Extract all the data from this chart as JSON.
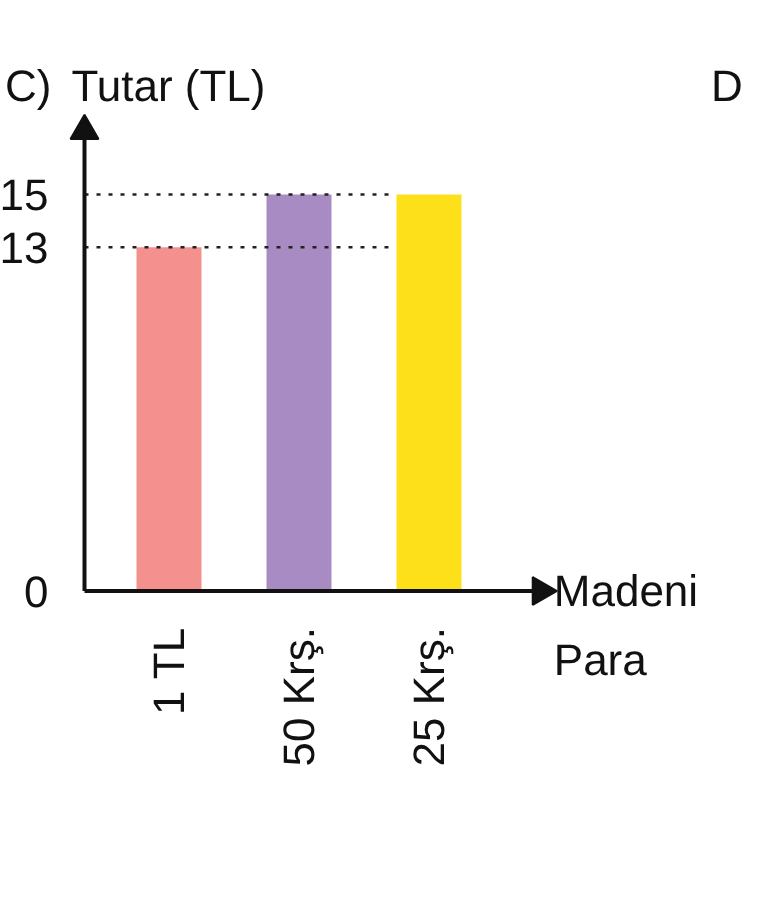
{
  "chart_data": {
    "type": "bar",
    "categories": [
      "1 TL",
      "50 Krş.",
      "25 Krş."
    ],
    "values": [
      13,
      15,
      15
    ],
    "colors": [
      "#f4908e",
      "#a98bc4",
      "#fde01a"
    ],
    "ylabel": "Tutar (TL)",
    "xlabel": "Madeni Para",
    "ylim": [
      0,
      17.4
    ],
    "yticks": [
      0,
      13,
      15
    ],
    "ref_lines": [
      {
        "axis": "y",
        "value": 13,
        "line_style": "dotted",
        "color": "#222222"
      },
      {
        "axis": "y",
        "value": 15,
        "line_style": "dotted",
        "color": "#222222"
      }
    ],
    "annotations": [
      "C)",
      "D"
    ],
    "grid": false
  }
}
